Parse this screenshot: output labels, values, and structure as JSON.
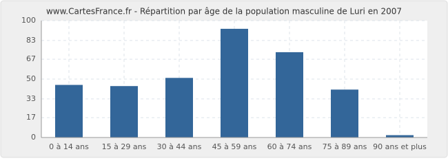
{
  "chart_data": {
    "type": "bar",
    "title": "www.CartesFrance.fr - Répartition par âge de la population masculine de Luri en 2007",
    "categories": [
      "0 à 14 ans",
      "15 à 29 ans",
      "30 à 44 ans",
      "45 à 59 ans",
      "60 à 74 ans",
      "75 à 89 ans",
      "90 ans et plus"
    ],
    "values": [
      45,
      44,
      51,
      93,
      73,
      41,
      2
    ],
    "color": "#336699",
    "ylim": [
      0,
      100
    ],
    "yticks": [
      0,
      17,
      33,
      50,
      67,
      83,
      100
    ],
    "grid": true
  }
}
